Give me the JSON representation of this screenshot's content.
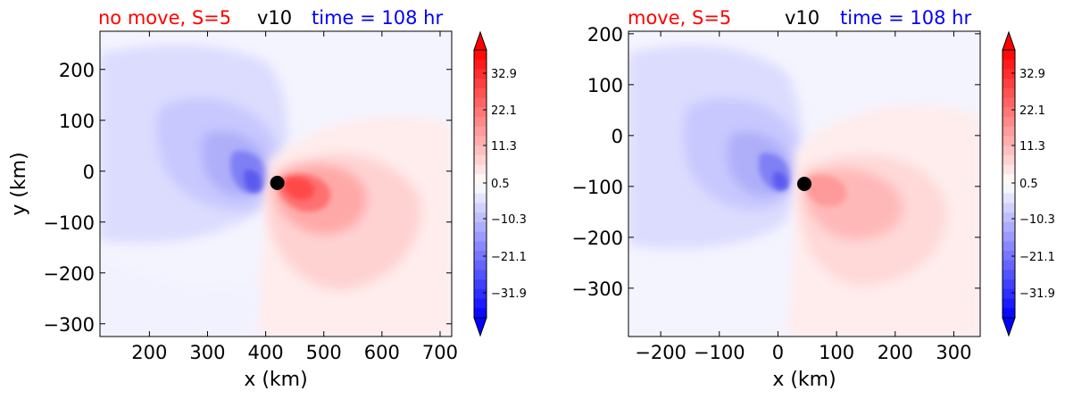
{
  "chart_data": [
    {
      "type": "contourf",
      "title_left": "no move, S=5",
      "title_center": "v10",
      "title_right": "time = 108 hr",
      "title_left_color": "#ff0000",
      "title_center_color": "#000000",
      "title_right_color": "#0000ff",
      "xlabel": "x (km)",
      "ylabel": "y (km)",
      "xlim": [
        115,
        720
      ],
      "ylim": [
        -325,
        275
      ],
      "xticks": [
        200,
        300,
        400,
        500,
        600,
        700
      ],
      "xtick_labels": [
        "200",
        "300",
        "400",
        "500",
        "600",
        "700"
      ],
      "yticks": [
        200,
        100,
        0,
        -100,
        -200,
        -300
      ],
      "ytick_labels": [
        "200",
        "100",
        "0",
        "−100",
        "−200",
        "−300"
      ],
      "center": {
        "x": 420,
        "y": -23
      },
      "colorbar": {
        "tick_labels": [
          "32.9",
          "22.1",
          "11.3",
          "0.5",
          "−10.3",
          "−21.1",
          "−31.9"
        ],
        "extend": "both",
        "cmap": "bwr"
      }
    },
    {
      "type": "contourf",
      "title_left": "move, S=5",
      "title_center": "v10",
      "title_right": "time = 108 hr",
      "title_left_color": "#ff0000",
      "title_center_color": "#000000",
      "title_right_color": "#0000ff",
      "xlabel": "x (km)",
      "ylabel": "",
      "xlim": [
        -255,
        345
      ],
      "ylim": [
        -395,
        205
      ],
      "xticks": [
        -200,
        -100,
        0,
        100,
        200,
        300
      ],
      "xtick_labels": [
        "−200",
        "−100",
        "0",
        "100",
        "200",
        "300"
      ],
      "yticks": [
        200,
        100,
        0,
        -100,
        -200,
        -300
      ],
      "ytick_labels": [
        "200",
        "100",
        "0",
        "−100",
        "−200",
        "−300"
      ],
      "center": {
        "x": 45,
        "y": -95
      },
      "colorbar": {
        "tick_labels": [
          "32.9",
          "22.1",
          "11.3",
          "0.5",
          "−10.3",
          "−21.1",
          "−31.9"
        ],
        "extend": "both",
        "cmap": "bwr"
      }
    }
  ]
}
